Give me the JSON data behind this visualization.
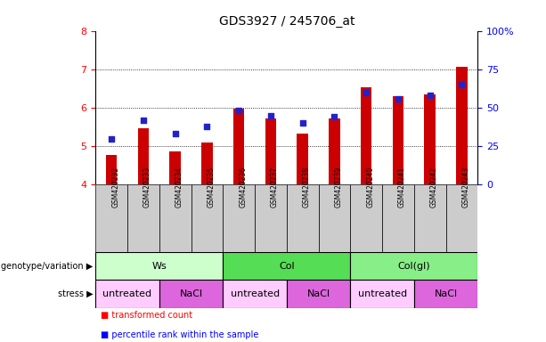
{
  "title": "GDS3927 / 245706_at",
  "samples": [
    "GSM420232",
    "GSM420233",
    "GSM420234",
    "GSM420235",
    "GSM420236",
    "GSM420237",
    "GSM420238",
    "GSM420239",
    "GSM420240",
    "GSM420241",
    "GSM420242",
    "GSM420243"
  ],
  "transformed_count": [
    4.78,
    5.47,
    4.87,
    5.1,
    5.97,
    5.73,
    5.33,
    5.72,
    6.52,
    6.3,
    6.35,
    7.07
  ],
  "percentile_rank": [
    30,
    42,
    33,
    38,
    48,
    45,
    40,
    44,
    60,
    56,
    58,
    65
  ],
  "bar_bottom": 4.0,
  "ylim_left": [
    4.0,
    8.0
  ],
  "ylim_right": [
    0,
    100
  ],
  "yticks_left": [
    4,
    5,
    6,
    7,
    8
  ],
  "yticks_right": [
    0,
    25,
    50,
    75,
    100
  ],
  "ytick_labels_right": [
    "0",
    "25",
    "50",
    "75",
    "100%"
  ],
  "bar_color": "#cc0000",
  "dot_color": "#2222cc",
  "bar_width": 0.35,
  "groups": [
    {
      "label": "Ws",
      "start": 0,
      "end": 3,
      "color": "#ccffcc"
    },
    {
      "label": "Col",
      "start": 4,
      "end": 7,
      "color": "#55dd55"
    },
    {
      "label": "Col(gl)",
      "start": 8,
      "end": 11,
      "color": "#88ee88"
    }
  ],
  "stress_groups": [
    {
      "label": "untreated",
      "start": 0,
      "end": 1,
      "color": "#ffccff"
    },
    {
      "label": "NaCl",
      "start": 2,
      "end": 3,
      "color": "#dd66dd"
    },
    {
      "label": "untreated",
      "start": 4,
      "end": 5,
      "color": "#ffccff"
    },
    {
      "label": "NaCl",
      "start": 6,
      "end": 7,
      "color": "#dd66dd"
    },
    {
      "label": "untreated",
      "start": 8,
      "end": 9,
      "color": "#ffccff"
    },
    {
      "label": "NaCl",
      "start": 10,
      "end": 11,
      "color": "#dd66dd"
    }
  ],
  "genotype_label": "genotype/variation",
  "stress_label": "stress",
  "xtick_bg_color": "#cccccc",
  "legend_transformed": "transformed count",
  "legend_percentile": "percentile rank within the sample"
}
